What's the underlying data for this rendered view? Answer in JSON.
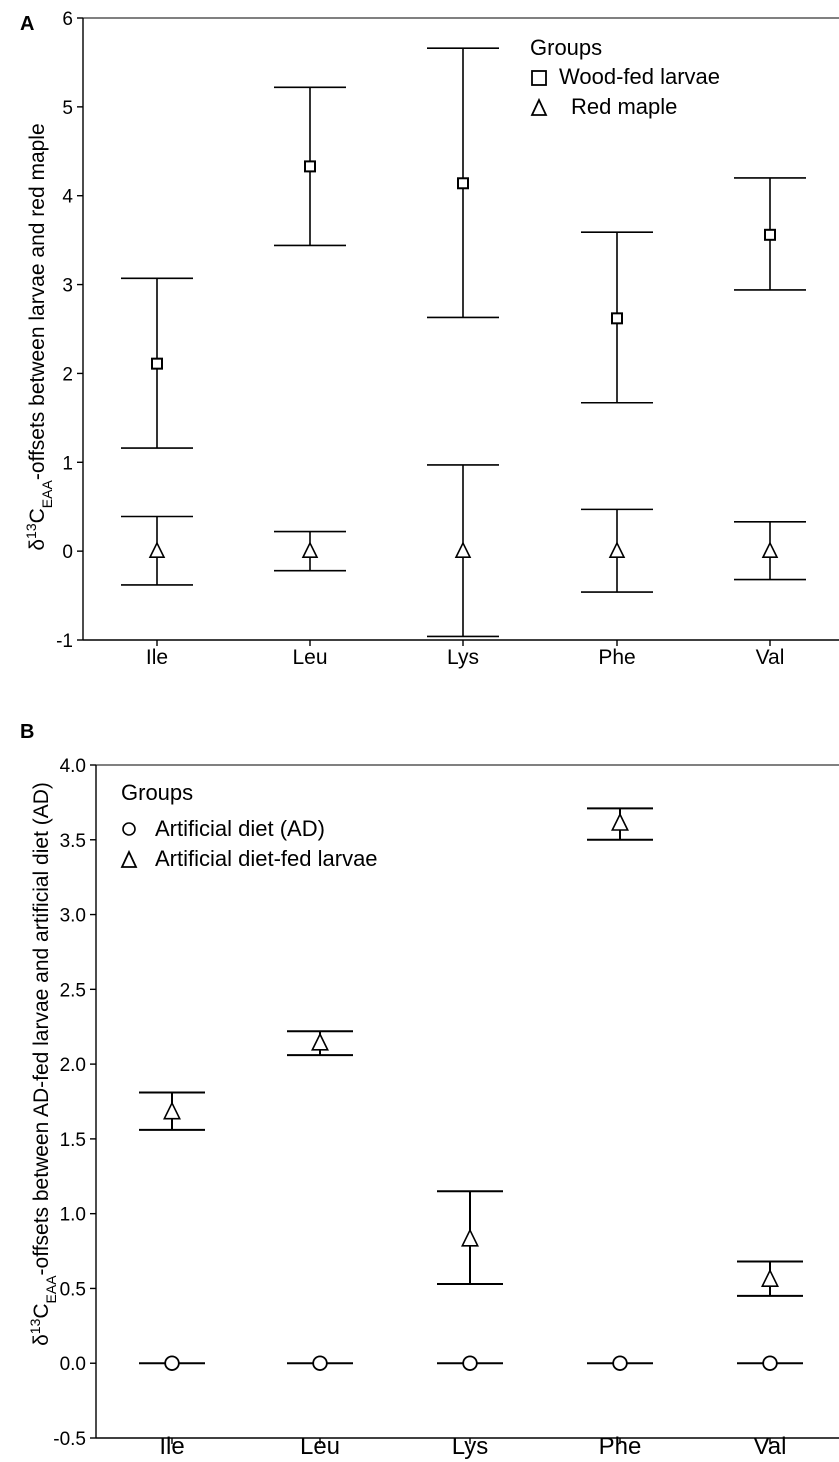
{
  "chart_data": [
    {
      "panel": "A",
      "type": "scatter",
      "categories": [
        "Ile",
        "Leu",
        "Lys",
        "Phe",
        "Val"
      ],
      "ylabel_parts": {
        "delta": "δ",
        "sup": "13",
        "c": "C",
        "sub": "EAA",
        "rest": "-offsets between larvae and red maple"
      },
      "ylim": [
        -1,
        6
      ],
      "yticks": [
        "-1",
        "0",
        "1",
        "2",
        "3",
        "4",
        "5",
        "6"
      ],
      "grid": false,
      "legend_title": "Groups",
      "legend_position": "top-right",
      "series": [
        {
          "name": "Wood-fed larvae",
          "marker": "square",
          "values": [
            2.11,
            4.33,
            4.14,
            2.62,
            3.56
          ],
          "lower": [
            1.16,
            3.44,
            2.63,
            1.67,
            2.94
          ],
          "upper": [
            3.07,
            5.22,
            5.66,
            3.59,
            4.2
          ]
        },
        {
          "name": "Red maple",
          "marker": "triangle",
          "values": [
            0.0,
            0.0,
            0.0,
            0.0,
            0.0
          ],
          "lower": [
            -0.38,
            -0.22,
            -0.96,
            -0.46,
            -0.32
          ],
          "upper": [
            0.39,
            0.22,
            0.97,
            0.47,
            0.33
          ]
        }
      ]
    },
    {
      "panel": "B",
      "type": "scatter",
      "categories": [
        "Ile",
        "Leu",
        "Lys",
        "Phe",
        "Val"
      ],
      "ylabel_parts": {
        "delta": "δ",
        "sup": "13",
        "c": "C",
        "sub": "EAA",
        "rest": "-offsets between AD-fed larvae and artificial diet (AD)"
      },
      "ylim": [
        -0.5,
        4.0
      ],
      "yticks": [
        "-0.5",
        "0.0",
        "0.5",
        "1.0",
        "1.5",
        "2.0",
        "2.5",
        "3.0",
        "3.5",
        "4.0"
      ],
      "grid": false,
      "legend_title": "Groups",
      "legend_position": "top-left",
      "series": [
        {
          "name": "Artificial diet (AD)",
          "marker": "circle",
          "values": [
            0.0,
            0.0,
            0.0,
            0.0,
            0.0
          ],
          "lower": [
            0.0,
            0.0,
            0.0,
            0.0,
            0.0
          ],
          "upper": [
            0.0,
            0.0,
            0.0,
            0.0,
            0.0
          ]
        },
        {
          "name": "Artificial diet-fed larvae",
          "marker": "triangle",
          "values": [
            1.68,
            2.14,
            0.83,
            3.61,
            0.56
          ],
          "lower": [
            1.56,
            2.06,
            0.53,
            3.5,
            0.45
          ],
          "upper": [
            1.81,
            2.22,
            1.15,
            3.71,
            0.68
          ]
        }
      ]
    }
  ]
}
